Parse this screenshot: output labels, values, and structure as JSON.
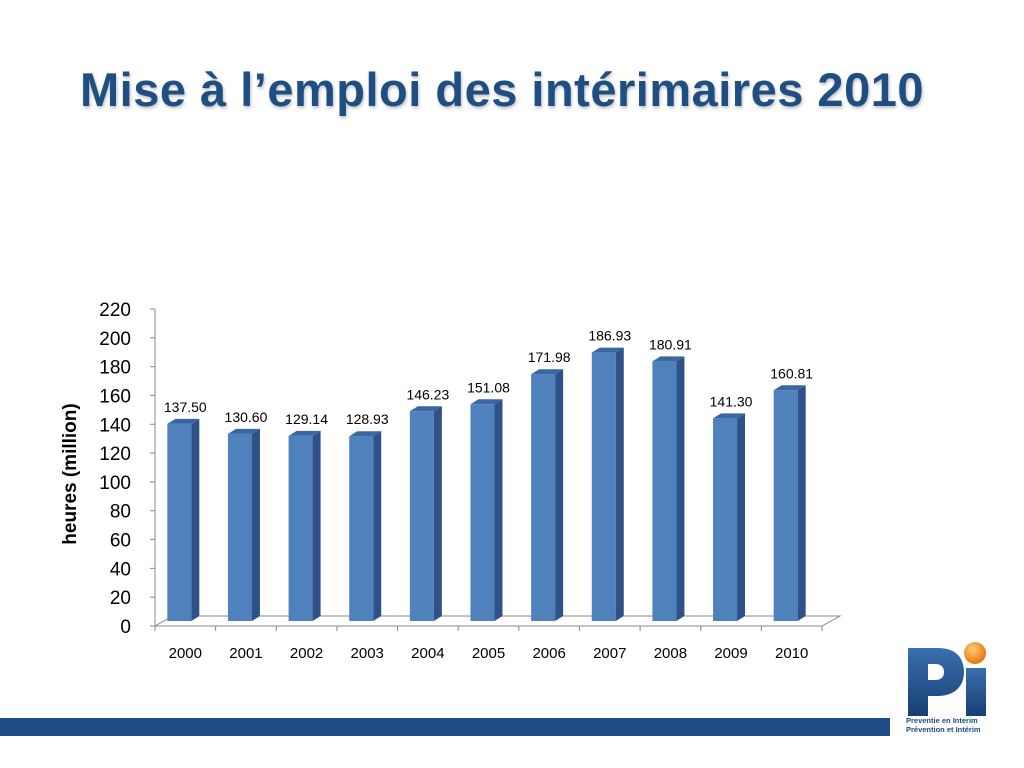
{
  "slide": {
    "title": "Mise à l’emploi des intérimaires 2010"
  },
  "chart_data": {
    "type": "bar",
    "title": "",
    "xlabel": "",
    "ylabel": "heures (million)",
    "ylim": [
      0,
      220
    ],
    "yticks": [
      0,
      20,
      40,
      60,
      80,
      100,
      120,
      140,
      160,
      180,
      200,
      220
    ],
    "categories": [
      "2000",
      "2001",
      "2002",
      "2003",
      "2004",
      "2005",
      "2006",
      "2007",
      "2008",
      "2009",
      "2010"
    ],
    "values": [
      137.5,
      130.6,
      129.14,
      128.93,
      146.23,
      151.08,
      171.98,
      186.93,
      180.91,
      141.3,
      160.81
    ],
    "labels": [
      "137.50",
      "130.60",
      "129.14",
      "128.93",
      "146.23",
      "151.08",
      "171.98",
      "186.93",
      "180.91",
      "141.30",
      "160.81"
    ],
    "grid": false,
    "legend": "none",
    "colors": {
      "bar_front": "#4f81bd",
      "bar_side": "#2e5288",
      "bar_top": "#3a67a3"
    }
  },
  "logo": {
    "icon": "pi-logo-icon",
    "line1": "Preventie en Interim",
    "line2": "Prévention et Intérim",
    "colors": {
      "letters": "#1d4c86",
      "dot": "#f08a1c"
    }
  }
}
